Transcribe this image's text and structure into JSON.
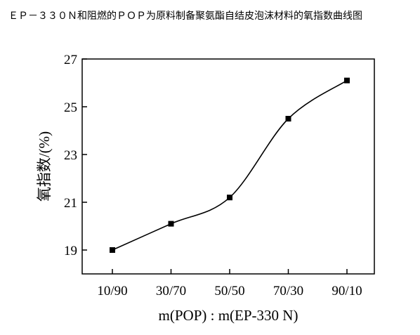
{
  "caption": "ＥＰ－３３０Ｎ和阻燃的ＰＯＰ为原料制备聚氨酯自结皮泡沫材料的氧指数曲线图",
  "chart_data": {
    "type": "line",
    "categories": [
      "10/90",
      "30/70",
      "50/50",
      "70/30",
      "90/10"
    ],
    "series": [
      {
        "values": [
          19.0,
          20.1,
          21.2,
          24.5,
          26.1
        ]
      }
    ],
    "xlabel": "m(POP) : m(EP-330 N)",
    "ylabel": "氧指数/(%)",
    "ylim": [
      18,
      27
    ],
    "yticks": [
      19,
      21,
      23,
      25,
      27
    ],
    "grid": false,
    "marker": "square",
    "smooth": true
  }
}
